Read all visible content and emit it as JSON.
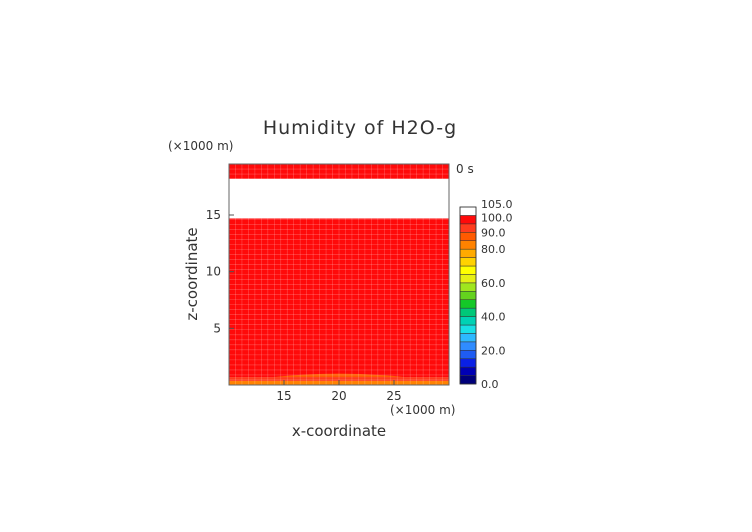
{
  "chart_data": {
    "type": "heatmap",
    "title": "Humidity of H2O-g",
    "time_label": "0 s",
    "xlabel": "x-coordinate",
    "ylabel": "z-coordinate",
    "x_unit": "(×1000 m)",
    "z_unit": "(×1000 m)",
    "xlim": [
      10,
      30
    ],
    "zlim": [
      0,
      19.5
    ],
    "x_ticks": [
      15,
      20,
      25
    ],
    "z_ticks": [
      5,
      10,
      15
    ],
    "colorbar": {
      "min": 0,
      "max": 105,
      "step": 5,
      "labels": [
        "0.0",
        "20.0",
        "40.0",
        "60.0",
        "80.0",
        "90.0",
        "100.0",
        "105.0"
      ],
      "label_values": [
        0,
        20,
        40,
        60,
        80,
        90,
        100,
        105
      ],
      "band_colors": [
        "#00007a",
        "#0000b4",
        "#0a20e6",
        "#1f5cf2",
        "#2f8cff",
        "#2db9ff",
        "#19e0e6",
        "#00d2b4",
        "#00c878",
        "#14c828",
        "#64d21e",
        "#a0e61e",
        "#e6f014",
        "#ffff00",
        "#ffd200",
        "#ffaa00",
        "#ff8200",
        "#ff5a00",
        "#ff3c1e",
        "#ff0a0a",
        "#ffffff"
      ]
    },
    "field_layers": [
      {
        "z_top": 0.35,
        "value": 80
      },
      {
        "z_top": 0.7,
        "value": 92
      },
      {
        "z_top": 14.7,
        "value": 98
      },
      {
        "z_top": 18.2,
        "value": 103
      },
      {
        "z_top": 19.5,
        "value": 98
      }
    ],
    "surface_bump": {
      "x_center": 20,
      "x_half_width": 6,
      "z_peak": 1.0,
      "value": 88
    }
  }
}
